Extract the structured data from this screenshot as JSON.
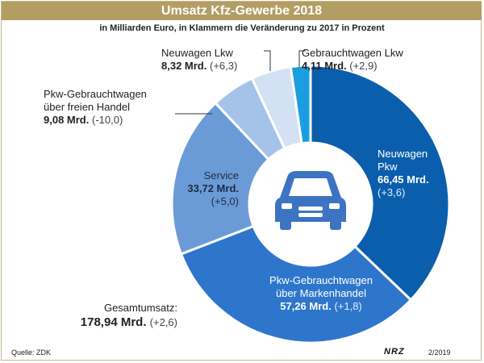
{
  "chart_data": {
    "type": "pie",
    "title": "Umsatz Kfz-Gewerbe 2018",
    "subtitle": "in Milliarden Euro, in Klammern die Veränderung zu 2017 in Prozent",
    "slices": [
      {
        "label_lines": [
          "Neuwagen",
          "Pkw"
        ],
        "value": 66.45,
        "value_label": "66,45 Mrd.",
        "change": "(+3,6)",
        "color": "#0b5eac"
      },
      {
        "label_lines": [
          "Pkw-Gebrauchtwagen",
          "über Markenhandel"
        ],
        "value": 57.26,
        "value_label": "57,26 Mrd.",
        "change": "(+1,8)",
        "color": "#2e76cb"
      },
      {
        "label_lines": [
          "Service"
        ],
        "value": 33.72,
        "value_label": "33,72 Mrd.",
        "change": "(+5,0)",
        "color": "#6b9bd6"
      },
      {
        "label_lines": [
          "Pkw-Gebrauchtwagen",
          "über freien Handel"
        ],
        "value": 9.08,
        "value_label": "9,08 Mrd.",
        "change": "(-10,0)",
        "color": "#a5c3e8"
      },
      {
        "label_lines": [
          "Neuwagen Lkw"
        ],
        "value": 8.32,
        "value_label": "8,32 Mrd.",
        "change": "(+6,3)",
        "color": "#d3e1f4"
      },
      {
        "label_lines": [
          "Gebrauchtwagen Lkw"
        ],
        "value": 4.11,
        "value_label": "4,11 Mrd.",
        "change": "(+2,9)",
        "color": "#1a9ee0"
      }
    ],
    "total": {
      "label": "Gesamtumsatz:",
      "value": 178.94,
      "value_label": "178,94 Mrd.",
      "change": "(+2,6)"
    }
  },
  "footer": {
    "source": "Quelle: ZDK",
    "logo": "NRZ",
    "date": "2/2019"
  },
  "colors": {
    "title_bar": "#b29d63",
    "center_circle": "#ffffff",
    "car_icon": "#3d74c2"
  },
  "icons": {
    "center": "car-icon"
  }
}
